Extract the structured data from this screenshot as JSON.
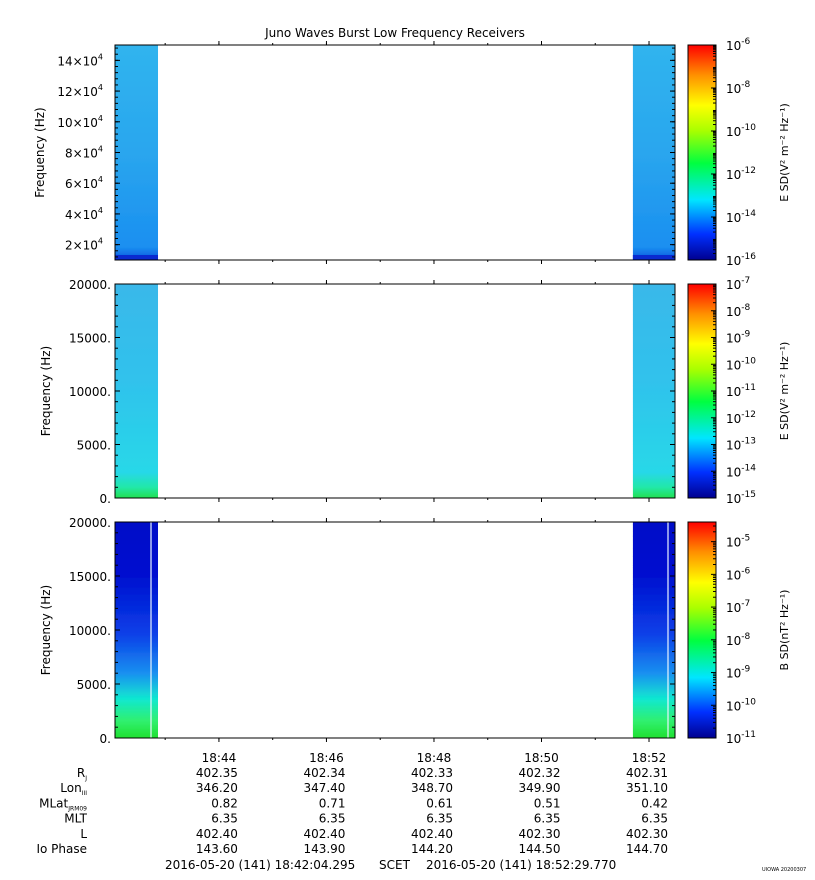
{
  "title": "Juno Waves Burst Low Frequency Receivers",
  "footer": {
    "start": "2016-05-20 (141) 18:42:04.295",
    "scet": "SCET",
    "end": "2016-05-20 (141) 18:52:29.770",
    "stamp": "UIOWA 20200307"
  },
  "colors": {
    "low": "#0000aa",
    "mid": "#00ffff",
    "high": "#ff0000"
  },
  "chart_data": [
    {
      "type": "heatmap",
      "ylabel": "Frequency (Hz)",
      "yticks": [
        {
          "v": 20000,
          "m": "2×10",
          "e": "4"
        },
        {
          "v": 40000,
          "m": "4×10",
          "e": "4"
        },
        {
          "v": 60000,
          "m": "6×10",
          "e": "4"
        },
        {
          "v": 80000,
          "m": "8×10",
          "e": "4"
        },
        {
          "v": 100000,
          "m": "10×10",
          "e": "4"
        },
        {
          "v": 120000,
          "m": "12×10",
          "e": "4"
        },
        {
          "v": 140000,
          "m": "14×10",
          "e": "4"
        }
      ],
      "ylim": [
        10000,
        150000
      ],
      "data_intervals": [
        [
          "18:42:04",
          "18:42:52"
        ],
        [
          "18:51:42",
          "18:52:29"
        ]
      ],
      "colorbar": {
        "label": "E SD",
        "units": "(V² m⁻² Hz⁻¹)",
        "log": true,
        "range_exp": [
          -16,
          -6
        ],
        "ticks": [
          "-16",
          "-14",
          "-12",
          "-10",
          "-8",
          "-6"
        ]
      }
    },
    {
      "type": "heatmap",
      "ylabel": "Frequency (Hz)",
      "yticks": [
        {
          "v": 0,
          "m": "0."
        },
        {
          "v": 5000,
          "m": "5000."
        },
        {
          "v": 10000,
          "m": "10000."
        },
        {
          "v": 15000,
          "m": "15000."
        },
        {
          "v": 20000,
          "m": "20000."
        }
      ],
      "ylim": [
        0,
        20000
      ],
      "data_intervals": [
        [
          "18:42:04",
          "18:42:52"
        ],
        [
          "18:51:42",
          "18:52:29"
        ]
      ],
      "colorbar": {
        "label": "E SD",
        "units": "(V² m⁻² Hz⁻¹)",
        "log": true,
        "range_exp": [
          -15,
          -7
        ],
        "ticks": [
          "-15",
          "-14",
          "-13",
          "-12",
          "-11",
          "-10",
          "-9",
          "-8",
          "-7"
        ]
      }
    },
    {
      "type": "heatmap",
      "ylabel": "Frequency (Hz)",
      "yticks": [
        {
          "v": 0,
          "m": "0."
        },
        {
          "v": 5000,
          "m": "5000."
        },
        {
          "v": 10000,
          "m": "10000."
        },
        {
          "v": 15000,
          "m": "15000."
        },
        {
          "v": 20000,
          "m": "20000."
        }
      ],
      "ylim": [
        0,
        20000
      ],
      "data_intervals": [
        [
          "18:42:04",
          "18:42:52"
        ],
        [
          "18:51:42",
          "18:52:29"
        ]
      ],
      "colorbar": {
        "label": "B SD",
        "units": "(nT² Hz⁻¹)",
        "log": true,
        "range_exp": [
          -11,
          -4.4
        ],
        "ticks": [
          "-11",
          "-10",
          "-9",
          "-8",
          "-7",
          "-6",
          "-5"
        ]
      }
    }
  ],
  "time_axis": {
    "start": "18:42:04",
    "end": "18:52:29",
    "ticks": [
      "18:44",
      "18:46",
      "18:48",
      "18:50",
      "18:52"
    ],
    "minor_step_minutes": 1
  },
  "ephemeris": [
    {
      "label": "R",
      "sub": "J",
      "values": [
        "402.35",
        "402.34",
        "402.33",
        "402.32",
        "402.31"
      ]
    },
    {
      "label": "Lon",
      "sub": "III",
      "values": [
        "346.20",
        "347.40",
        "348.70",
        "349.90",
        "351.10"
      ]
    },
    {
      "label": "MLat",
      "sub": "JRM09",
      "values": [
        "0.82",
        "0.71",
        "0.61",
        "0.51",
        "0.42"
      ]
    },
    {
      "label": "MLT",
      "sub": "",
      "values": [
        "6.35",
        "6.35",
        "6.35",
        "6.35",
        "6.35"
      ]
    },
    {
      "label": "L",
      "sub": "",
      "values": [
        "402.40",
        "402.40",
        "402.40",
        "402.30",
        "402.30"
      ]
    },
    {
      "label": "Io Phase",
      "sub": "",
      "values": [
        "143.60",
        "143.90",
        "144.20",
        "144.50",
        "144.70"
      ]
    }
  ]
}
